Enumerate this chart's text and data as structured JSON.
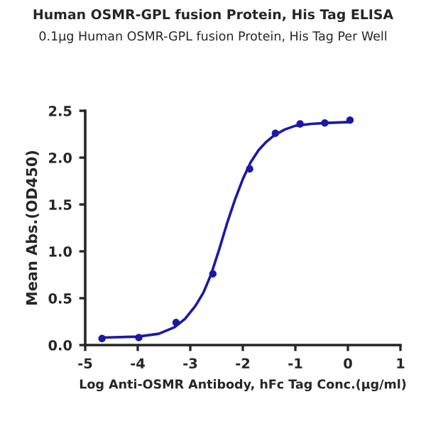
{
  "chart_data": {
    "type": "scatter",
    "title": "Human OSMR-GPL fusion Protein, His Tag ELISA",
    "subtitle": "0.1μg Human OSMR-GPL fusion Protein, His Tag Per Well",
    "xlabel": "Log Anti-OSMR Antibody, hFc Tag Conc.(μg/ml)",
    "ylabel": "Mean Abs.(OD450)",
    "xlim": [
      -5,
      1
    ],
    "xticks": [
      -5,
      -4,
      -3,
      -2,
      -1,
      0,
      1
    ],
    "ylim": [
      0,
      2.5
    ],
    "yticks": [
      {
        "value": 0,
        "label": "0.0"
      },
      {
        "value": 0.5,
        "label": "0.5"
      },
      {
        "value": 1,
        "label": "1.0"
      },
      {
        "value": 1.5,
        "label": "1.5"
      },
      {
        "value": 2,
        "label": "2.0"
      },
      {
        "value": 2.5,
        "label": "2.5"
      }
    ],
    "grid": false,
    "legend": false,
    "series": [
      {
        "color": "#1a1aa6",
        "marker": "circle",
        "x": [
          -4.68,
          -3.98,
          -3.27,
          -2.57,
          -1.87,
          -1.38,
          -0.91,
          -0.44,
          0.04
        ],
        "values": [
          0.07,
          0.08,
          0.24,
          0.76,
          1.88,
          2.26,
          2.36,
          2.37,
          2.4
        ]
      },
      {
        "type": "line",
        "color": "#1a1aa6",
        "line_style": "solid",
        "x": [
          -4.68,
          -4.0,
          -3.6,
          -3.3,
          -3.1,
          -2.9,
          -2.75,
          -2.6,
          -2.45,
          -2.3,
          -2.15,
          -2.0,
          -1.85,
          -1.7,
          -1.55,
          -1.4,
          -1.2,
          -1.0,
          -0.7,
          -0.4,
          0.04
        ],
        "values": [
          0.08,
          0.09,
          0.12,
          0.19,
          0.28,
          0.42,
          0.56,
          0.76,
          1.02,
          1.3,
          1.55,
          1.77,
          1.95,
          2.08,
          2.17,
          2.24,
          2.3,
          2.34,
          2.36,
          2.37,
          2.38
        ]
      }
    ]
  }
}
